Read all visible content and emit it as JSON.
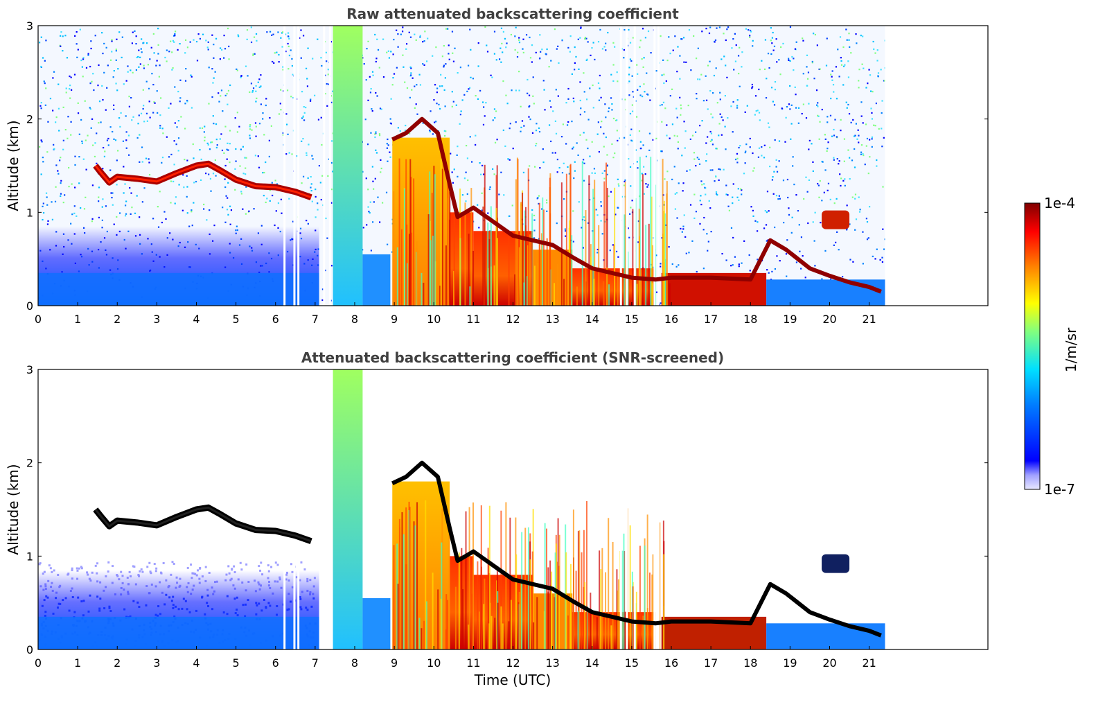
{
  "chart_data": [
    {
      "type": "heatmap",
      "title": "Raw attenuated backscattering coefficient",
      "xlabel": "",
      "ylabel": "Altitude (km)",
      "xlim": [
        0,
        24
      ],
      "ylim": [
        0,
        3
      ],
      "x_ticks": [
        "0",
        "1",
        "2",
        "3",
        "4",
        "5",
        "6",
        "7",
        "8",
        "9",
        "10",
        "11",
        "12",
        "13",
        "14",
        "15",
        "16",
        "17",
        "18",
        "19",
        "20",
        "21"
      ],
      "y_ticks": [
        "0",
        "1",
        "2",
        "3"
      ],
      "data_extent_hours": [
        0,
        21.4
      ],
      "colormap": "jet",
      "screened": false,
      "cloud_layer": {
        "x": [
          1.45,
          1.6,
          1.8,
          2,
          2.5,
          3,
          3.5,
          4,
          4.3,
          4.6,
          5,
          5.5,
          6,
          6.5,
          6.9
        ],
        "y": [
          1.5,
          1.42,
          1.32,
          1.38,
          1.36,
          1.33,
          1.42,
          1.5,
          1.52,
          1.45,
          1.35,
          1.28,
          1.27,
          1.22,
          1.16
        ]
      },
      "mixed_layer_top": {
        "x": [
          8.95,
          9.3,
          9.7,
          10.1,
          10.4,
          10.6,
          11,
          11.5,
          12,
          12.5,
          13,
          13.5,
          14,
          14.5,
          15,
          15.6,
          16,
          17,
          18,
          18.5,
          18.9,
          19.5,
          20,
          20.5,
          21,
          21.3
        ],
        "y": [
          1.78,
          1.85,
          2.0,
          1.85,
          1.3,
          0.95,
          1.05,
          0.9,
          0.75,
          0.7,
          0.65,
          0.52,
          0.4,
          0.35,
          0.3,
          0.28,
          0.3,
          0.3,
          0.28,
          0.7,
          0.6,
          0.4,
          0.32,
          0.25,
          0.2,
          0.15
        ]
      },
      "elevated_aerosol": {
        "x": [
          19.8,
          20.5
        ],
        "y": [
          0.92,
          0.92
        ]
      },
      "colorbar": {
        "min_label": "1e-7",
        "max_label": "1e-4",
        "unit": "1/m/sr",
        "colors": [
          "#0000a0",
          "#0000ff",
          "#0080ff",
          "#00ffff",
          "#80ff80",
          "#ffff00",
          "#ff8000",
          "#ff0000",
          "#800000"
        ]
      }
    },
    {
      "type": "heatmap",
      "title": "Attenuated backscattering coefficient (SNR-screened)",
      "xlabel": "Time (UTC)",
      "ylabel": "Altitude (km)",
      "xlim": [
        0,
        24
      ],
      "ylim": [
        0,
        3
      ],
      "x_ticks": [
        "0",
        "1",
        "2",
        "3",
        "4",
        "5",
        "6",
        "7",
        "8",
        "9",
        "10",
        "11",
        "12",
        "13",
        "14",
        "15",
        "16",
        "17",
        "18",
        "19",
        "20",
        "21"
      ],
      "y_ticks": [
        "0",
        "1",
        "2",
        "3"
      ],
      "data_extent_hours": [
        0,
        21.4
      ],
      "colormap": "jet",
      "screened": true,
      "cloud_layer": {
        "x": [
          1.45,
          1.6,
          1.8,
          2,
          2.5,
          3,
          3.5,
          4,
          4.3,
          4.6,
          5,
          5.5,
          6,
          6.5,
          6.9
        ],
        "y": [
          1.5,
          1.42,
          1.32,
          1.38,
          1.36,
          1.33,
          1.42,
          1.5,
          1.52,
          1.45,
          1.35,
          1.28,
          1.27,
          1.22,
          1.16
        ]
      },
      "mixed_layer_top": {
        "x": [
          8.95,
          9.3,
          9.7,
          10.1,
          10.4,
          10.6,
          11,
          11.5,
          12,
          12.5,
          13,
          13.5,
          14,
          14.5,
          15,
          15.6,
          16,
          17,
          18,
          18.5,
          18.9,
          19.5,
          20,
          20.5,
          21,
          21.3
        ],
        "y": [
          1.78,
          1.85,
          2.0,
          1.85,
          1.3,
          0.95,
          1.05,
          0.9,
          0.75,
          0.7,
          0.65,
          0.52,
          0.4,
          0.35,
          0.3,
          0.28,
          0.3,
          0.3,
          0.28,
          0.7,
          0.6,
          0.4,
          0.32,
          0.25,
          0.2,
          0.15
        ]
      },
      "elevated_aerosol": {
        "x": [
          19.8,
          20.5
        ],
        "y": [
          0.92,
          0.92
        ]
      }
    }
  ],
  "colorbar": {
    "min_label": "1e-7",
    "max_label": "1e-4",
    "unit": "1/m/sr"
  }
}
